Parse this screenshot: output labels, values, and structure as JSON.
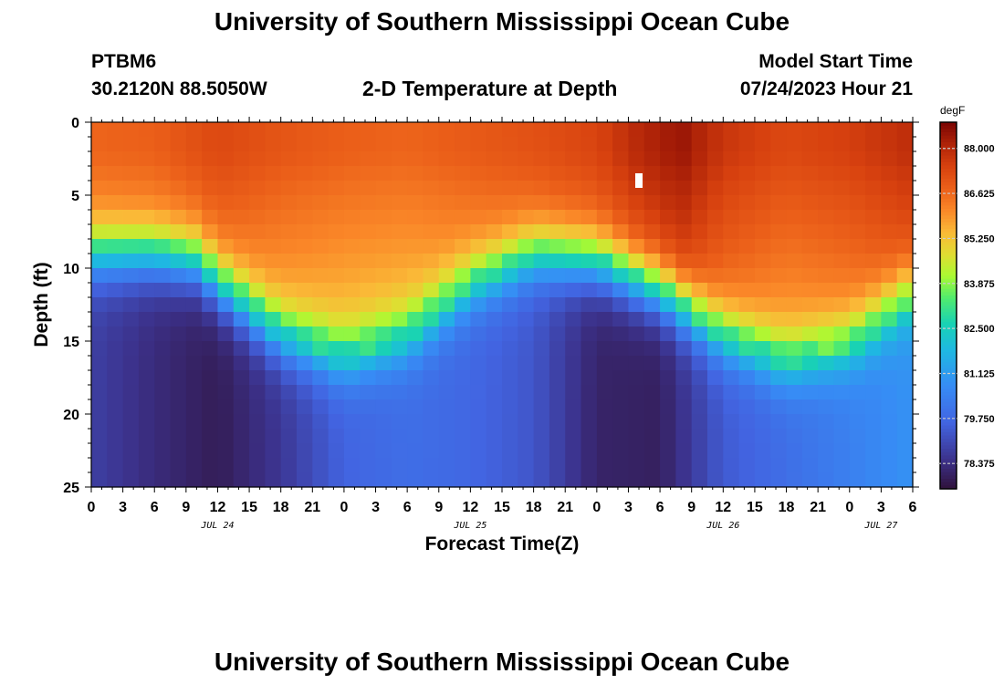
{
  "header": {
    "title_top": "University of Southern Mississippi Ocean Cube",
    "title_bottom": "University of Southern Mississippi Ocean Cube",
    "station_id": "PTBM6",
    "station_coords": "30.2120N  88.5050W",
    "chart_title": "2-D Temperature at Depth",
    "model_start_label": "Model Start Time",
    "model_start_value": "07/24/2023 Hour 21"
  },
  "chart_data": {
    "type": "heatmap",
    "title": "2-D Temperature at Depth",
    "xlabel": "Forecast Time(Z)",
    "ylabel": "Depth (ft)",
    "units": "degF",
    "x_range_hours": [
      0,
      78
    ],
    "x_ticks": [
      "0",
      "3",
      "6",
      "9",
      "12",
      "15",
      "18",
      "21",
      "0",
      "3",
      "6",
      "9",
      "12",
      "15",
      "18",
      "21",
      "0",
      "3",
      "6",
      "9",
      "12",
      "15",
      "18",
      "21",
      "0",
      "3",
      "6"
    ],
    "date_labels": [
      {
        "label": "JUL 24",
        "hour": 12
      },
      {
        "label": "JUL 25",
        "hour": 36
      },
      {
        "label": "JUL 26",
        "hour": 60
      },
      {
        "label": "JUL 27",
        "hour": 75
      }
    ],
    "y_range_ft": [
      0,
      25
    ],
    "y_ticks": [
      "0",
      "5",
      "10",
      "15",
      "20",
      "25"
    ],
    "y_tick_values": [
      0,
      5,
      10,
      15,
      20,
      25
    ],
    "colorbar_range": [
      77.6,
      88.8
    ],
    "colorbar_labels": [
      "88.000",
      "86.625",
      "85.250",
      "83.875",
      "82.500",
      "81.125",
      "79.750",
      "78.375"
    ],
    "colorbar_values": [
      88.0,
      86.625,
      85.25,
      83.875,
      82.5,
      81.125,
      79.75,
      78.375
    ],
    "grid": {
      "cols": 52,
      "rows": 25
    },
    "surface_temp_degF": {
      "hours": [
        0,
        6,
        12,
        18,
        24,
        30,
        36,
        42,
        48,
        52,
        56,
        60,
        66,
        72,
        78
      ],
      "values": [
        86.7,
        86.8,
        87.3,
        87.0,
        86.8,
        86.7,
        86.9,
        87.1,
        87.4,
        88.0,
        88.4,
        87.7,
        87.3,
        87.5,
        87.9
      ]
    },
    "thermocline_depth_ft": {
      "hours": [
        0,
        6,
        10,
        12,
        18,
        24,
        30,
        36,
        42,
        48,
        54,
        60,
        66,
        72,
        78
      ],
      "values": [
        9.0,
        9.0,
        9.5,
        11.0,
        14.5,
        16.0,
        14.5,
        11.0,
        9.0,
        9.5,
        11.5,
        14.5,
        16.2,
        15.0,
        11.5
      ]
    },
    "bottom_temp_degF": {
      "hours": [
        0,
        6,
        12,
        18,
        24,
        30,
        36,
        42,
        48,
        54,
        60,
        66,
        72,
        78
      ],
      "values": [
        78.8,
        78.3,
        77.9,
        78.6,
        79.6,
        79.9,
        79.7,
        79.3,
        78.1,
        78.0,
        79.4,
        79.9,
        80.4,
        80.9
      ]
    },
    "missing_cell": {
      "hour": 52,
      "depth_ft": 4
    }
  }
}
